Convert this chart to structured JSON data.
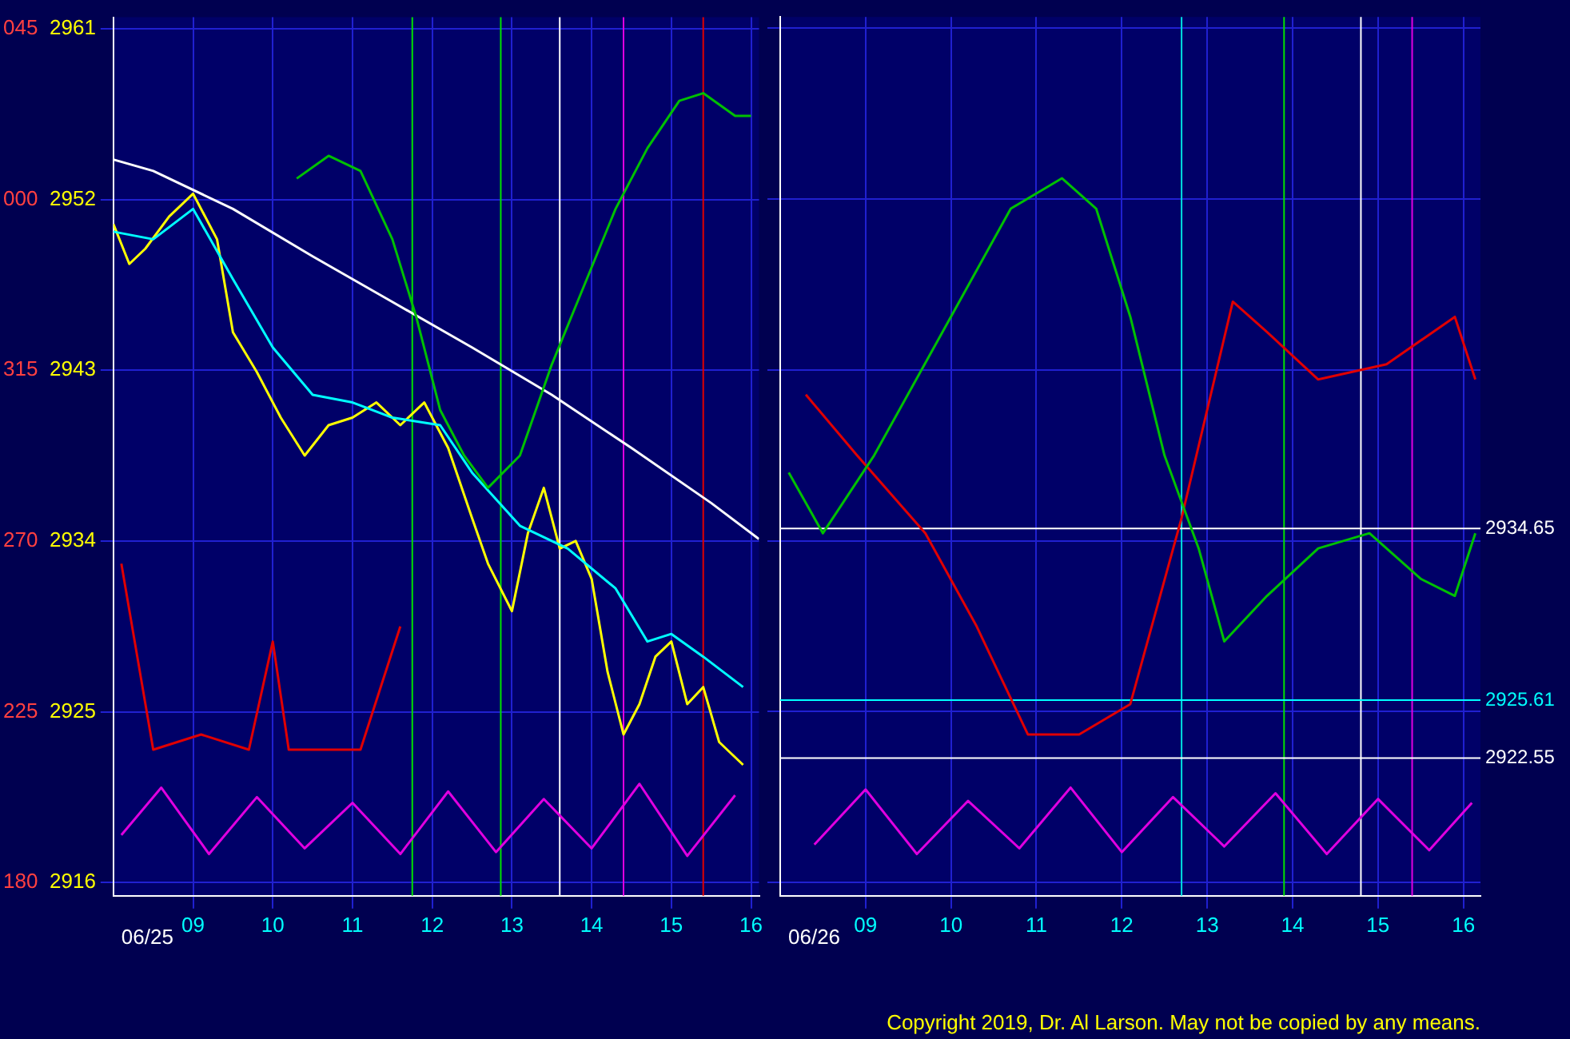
{
  "chart_data": [
    {
      "type": "line",
      "xlim": [
        8,
        16.1
      ],
      "ylim": [
        2915.3,
        2961.6
      ],
      "xticks": [
        {
          "value": 9,
          "label": "09"
        },
        10,
        11,
        12,
        13,
        14,
        15,
        16
      ],
      "yticks": [
        2916,
        2925,
        2934,
        2943,
        2952,
        2961
      ],
      "grid": true,
      "legend": false,
      "marker": "none",
      "series": [
        {
          "color": "#00c000",
          "x": [
            10.3,
            10.7,
            11.1,
            11.5,
            11.8,
            12.1,
            12.4,
            12.7,
            13.1,
            13.5,
            13.9,
            14.3,
            14.7,
            15.1,
            15.4,
            15.8,
            16.0
          ],
          "values": [
            2953.1,
            2954.3,
            2953.5,
            2949.9,
            2945.8,
            2940.9,
            2938.5,
            2936.8,
            2938.5,
            2943.3,
            2947.4,
            2951.5,
            2954.7,
            2957.2,
            2957.6,
            2956.4,
            2956.4
          ]
        },
        {
          "color": "#e00000",
          "x": [
            8.1,
            8.5,
            9.1,
            9.7,
            10.0,
            10.2,
            11.1,
            11.6
          ],
          "values": [
            2932.8,
            2923.0,
            2923.8,
            2923.0,
            2928.7,
            2923.0,
            2923.0,
            2929.5
          ]
        },
        {
          "color": "#e000e0",
          "x": [
            8.1,
            8.6,
            9.2,
            9.8,
            10.4,
            11.0,
            11.6,
            12.2,
            12.8,
            13.4,
            14.0,
            14.6,
            15.2,
            15.8
          ],
          "values": [
            2918.5,
            2921.0,
            2917.5,
            2920.5,
            2917.8,
            2920.2,
            2917.5,
            2920.8,
            2917.6,
            2920.4,
            2917.8,
            2921.2,
            2917.4,
            2920.6
          ]
        },
        {
          "color": "#ffffff",
          "x": [
            8.0,
            8.5,
            9.5,
            10.5,
            11.5,
            12.5,
            13.5,
            14.5,
            15.5,
            16.1
          ],
          "values": [
            2954.1,
            2953.5,
            2951.5,
            2949.0,
            2946.6,
            2944.2,
            2941.7,
            2938.9,
            2936.0,
            2934.1
          ]
        },
        {
          "color": "#00ffff",
          "x": [
            8.0,
            8.5,
            9.0,
            9.5,
            10.0,
            10.5,
            11.0,
            11.5,
            12.1,
            12.5,
            13.1,
            13.7,
            14.3,
            14.7,
            15.0,
            15.4,
            15.9
          ],
          "values": [
            2950.3,
            2949.9,
            2951.5,
            2947.8,
            2944.2,
            2941.7,
            2941.3,
            2940.5,
            2940.1,
            2937.6,
            2934.8,
            2933.6,
            2931.5,
            2928.7,
            2929.1,
            2927.9,
            2926.3
          ]
        },
        {
          "color": "#ffff00",
          "x": [
            8.0,
            8.2,
            8.4,
            8.7,
            9.0,
            9.3,
            9.5,
            9.8,
            10.1,
            10.4,
            10.7,
            11.0,
            11.3,
            11.6,
            11.9,
            12.2,
            12.5,
            12.7,
            13.0,
            13.2,
            13.4,
            13.6,
            13.8,
            14.0,
            14.2,
            14.4,
            14.6,
            14.8,
            15.0,
            15.2,
            15.4,
            15.6,
            15.9
          ],
          "values": [
            2950.7,
            2948.6,
            2949.4,
            2951.1,
            2952.3,
            2949.9,
            2945.0,
            2942.9,
            2940.5,
            2938.5,
            2940.1,
            2940.5,
            2941.3,
            2940.1,
            2941.3,
            2938.9,
            2935.2,
            2932.8,
            2930.3,
            2934.4,
            2936.8,
            2933.6,
            2934.0,
            2932.0,
            2927.1,
            2923.8,
            2925.4,
            2927.9,
            2928.7,
            2925.4,
            2926.3,
            2923.4,
            2922.2
          ]
        }
      ],
      "ref_lines": [
        {
          "axis": "x",
          "value": 11.75,
          "color": "#00e000"
        },
        {
          "axis": "x",
          "value": 12.86,
          "color": "#00e000"
        },
        {
          "axis": "x",
          "value": 13.6,
          "color": "#ffffff"
        },
        {
          "axis": "x",
          "value": 14.4,
          "color": "#e000e0"
        },
        {
          "axis": "x",
          "value": 15.4,
          "color": "#e00000"
        }
      ],
      "annotations": [
        "06/25",
        "180",
        "225",
        "270",
        "315",
        "000",
        "045"
      ]
    },
    {
      "type": "line",
      "xlim": [
        8,
        16.2
      ],
      "ylim": [
        2915.3,
        2961.6
      ],
      "xticks": [
        {
          "value": 9,
          "label": "09"
        },
        10,
        11,
        12,
        13,
        14,
        15,
        16
      ],
      "yticks": [
        2916,
        2925,
        2934,
        2943,
        2952,
        2961
      ],
      "tick_labels": "x",
      "grid": true,
      "legend": false,
      "marker": "none",
      "series": [
        {
          "color": "#00c000",
          "x": [
            8.1,
            8.5,
            9.1,
            9.9,
            10.7,
            11.3,
            11.7,
            12.1,
            12.5,
            12.9,
            13.2,
            13.7,
            14.3,
            14.9,
            15.5,
            15.9,
            16.14
          ],
          "values": [
            2937.6,
            2934.4,
            2938.5,
            2945.0,
            2951.5,
            2953.1,
            2951.5,
            2945.8,
            2938.5,
            2933.6,
            2928.7,
            2931.1,
            2933.6,
            2934.4,
            2932.0,
            2931.1,
            2934.4
          ]
        },
        {
          "color": "#e00000",
          "x": [
            8.3,
            8.9,
            9.7,
            10.3,
            10.9,
            11.5,
            12.1,
            12.7,
            13.3,
            13.7,
            14.3,
            15.1,
            15.9,
            16.14
          ],
          "values": [
            2941.7,
            2938.5,
            2934.4,
            2929.5,
            2923.8,
            2923.8,
            2925.4,
            2935.2,
            2946.6,
            2945.0,
            2942.5,
            2943.3,
            2945.8,
            2942.5
          ]
        },
        {
          "color": "#e000e0",
          "x": [
            8.4,
            9.0,
            9.6,
            10.2,
            10.8,
            11.4,
            12.0,
            12.6,
            13.2,
            13.8,
            14.4,
            15.0,
            15.6,
            16.1
          ],
          "values": [
            2918.0,
            2920.9,
            2917.5,
            2920.3,
            2917.8,
            2921.0,
            2917.6,
            2920.5,
            2917.9,
            2920.7,
            2917.5,
            2920.4,
            2917.7,
            2920.2
          ]
        }
      ],
      "ref_lines": [
        {
          "axis": "x",
          "value": 12.7,
          "color": "#00e0e0"
        },
        {
          "axis": "x",
          "value": 13.9,
          "color": "#00e000"
        },
        {
          "axis": "x",
          "value": 14.8,
          "color": "#ffffff"
        },
        {
          "axis": "x",
          "value": 15.4,
          "color": "#e000e0"
        },
        {
          "axis": "y",
          "value": 2934.65,
          "label": "2934.65",
          "color": "#ffffff"
        },
        {
          "axis": "y",
          "value": 2925.61,
          "label": "2925.61",
          "color": "#00ffff"
        },
        {
          "axis": "y",
          "value": 2922.55,
          "label": "2922.55",
          "color": "#ffffff"
        }
      ],
      "annotations": [
        "06/26",
        "Copyright 2019, Dr. Al Larson. May not be copied by any means."
      ]
    }
  ]
}
